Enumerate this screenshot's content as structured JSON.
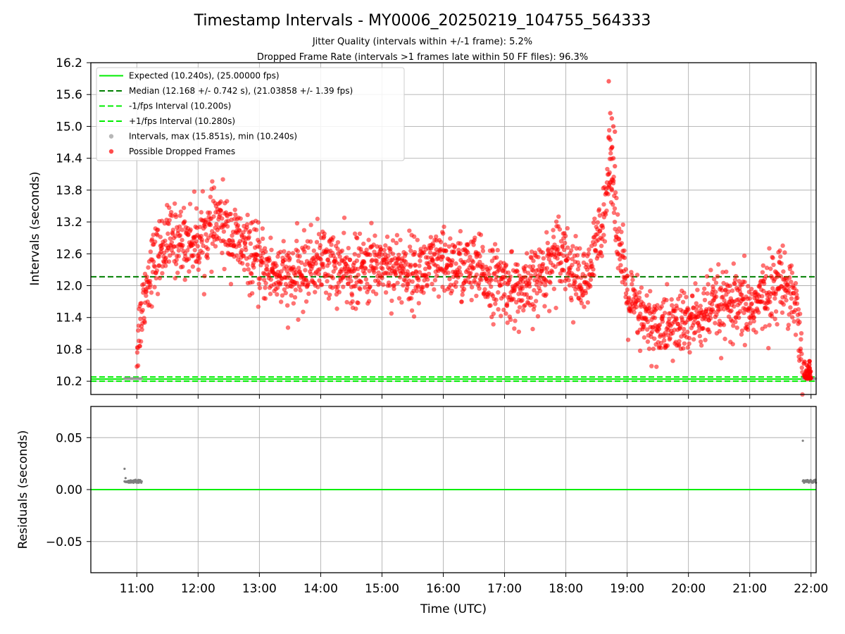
{
  "chart_data": {
    "type": "scatter",
    "title": "Timestamp Intervals - MY0006_20250219_104755_564333",
    "subtitles": [
      "Jitter Quality (intervals within +/-1 frame): 5.2%",
      "Dropped Frame Rate (intervals >1 frames late within 50 FF files): 96.3%"
    ],
    "xlabel": "Time (UTC)",
    "x_ticks": [
      "11:00",
      "12:00",
      "13:00",
      "14:00",
      "15:00",
      "16:00",
      "17:00",
      "18:00",
      "19:00",
      "20:00",
      "21:00",
      "22:00"
    ],
    "xlim": [
      "10:15",
      "22:05"
    ],
    "top_panel": {
      "ylabel": "Intervals (seconds)",
      "ylim": [
        9.95,
        16.2
      ],
      "y_ticks": [
        "10.2",
        "10.8",
        "11.4",
        "12.0",
        "12.6",
        "13.2",
        "13.8",
        "14.4",
        "15.0",
        "15.6",
        "16.2"
      ],
      "grid": true,
      "legend_position": "top-left",
      "legend": [
        {
          "label": "Expected (10.240s), (25.00000 fps)",
          "style": "solid-line",
          "color": "#00ee00"
        },
        {
          "label": "Median (12.168 +/- 0.742 s), (21.03858 +/- 1.39 fps)",
          "style": "dashed-line",
          "color": "#007f00"
        },
        {
          "label": "-1/fps Interval (10.200s)",
          "style": "dashed-line",
          "color": "#00ee00"
        },
        {
          "label": "+1/fps Interval (10.280s)",
          "style": "dashed-line",
          "color": "#00ee00"
        },
        {
          "label": "Intervals, max (15.851s), min (10.240s)",
          "style": "marker",
          "color": "#999999"
        },
        {
          "label": "Possible Dropped Frames",
          "style": "marker",
          "color": "#ff0000"
        }
      ],
      "expected": 10.24,
      "median": 12.168,
      "minus_fps": 10.2,
      "plus_fps": 10.28,
      "normal_intervals": {
        "time_ranges": [
          [
            "10:48",
            "11:05"
          ],
          [
            "21:52",
            "22:05"
          ]
        ],
        "value": 10.248
      },
      "dropped_frames_profile": {
        "times": [
          "11:00",
          "11:03",
          "11:08",
          "11:15",
          "11:30",
          "12:00",
          "12:20",
          "12:40",
          "13:00",
          "13:30",
          "14:00",
          "14:30",
          "15:00",
          "15:30",
          "16:00",
          "16:30",
          "17:00",
          "17:20",
          "17:40",
          "17:55",
          "18:05",
          "18:20",
          "18:35",
          "18:45",
          "18:50",
          "19:00",
          "19:15",
          "19:30",
          "20:00",
          "20:30",
          "21:00",
          "21:30",
          "21:40",
          "21:47",
          "21:50",
          "21:52"
        ],
        "values": [
          10.8,
          11.3,
          11.9,
          12.4,
          12.85,
          12.85,
          13.2,
          12.8,
          12.4,
          12.1,
          12.5,
          12.2,
          12.45,
          12.25,
          12.4,
          12.3,
          12.0,
          11.85,
          12.3,
          12.8,
          12.3,
          11.95,
          13.2,
          14.4,
          13.0,
          11.8,
          11.35,
          11.2,
          11.3,
          11.6,
          11.55,
          12.1,
          12.0,
          11.5,
          10.9,
          10.4
        ],
        "spread": 0.32,
        "count": 2300,
        "end_cluster": {
          "time_range": [
            "21:52",
            "22:00"
          ],
          "value_range": [
            10.25,
            10.6
          ]
        },
        "peak": 15.851
      }
    },
    "bottom_panel": {
      "ylabel": "Residuals (seconds)",
      "ylim": [
        -0.08,
        0.08
      ],
      "y_ticks": [
        "0.05",
        "0.00",
        "−0.05"
      ],
      "grid": true,
      "zero_line_color": "#00ee00",
      "clusters": [
        {
          "time_range": [
            "10:48",
            "11:05"
          ],
          "value": 0.008,
          "outliers": [
            0.02,
            0.011
          ]
        },
        {
          "time_range": [
            "21:52",
            "22:05"
          ],
          "value": 0.008,
          "outliers": [
            0.047
          ]
        }
      ]
    }
  }
}
